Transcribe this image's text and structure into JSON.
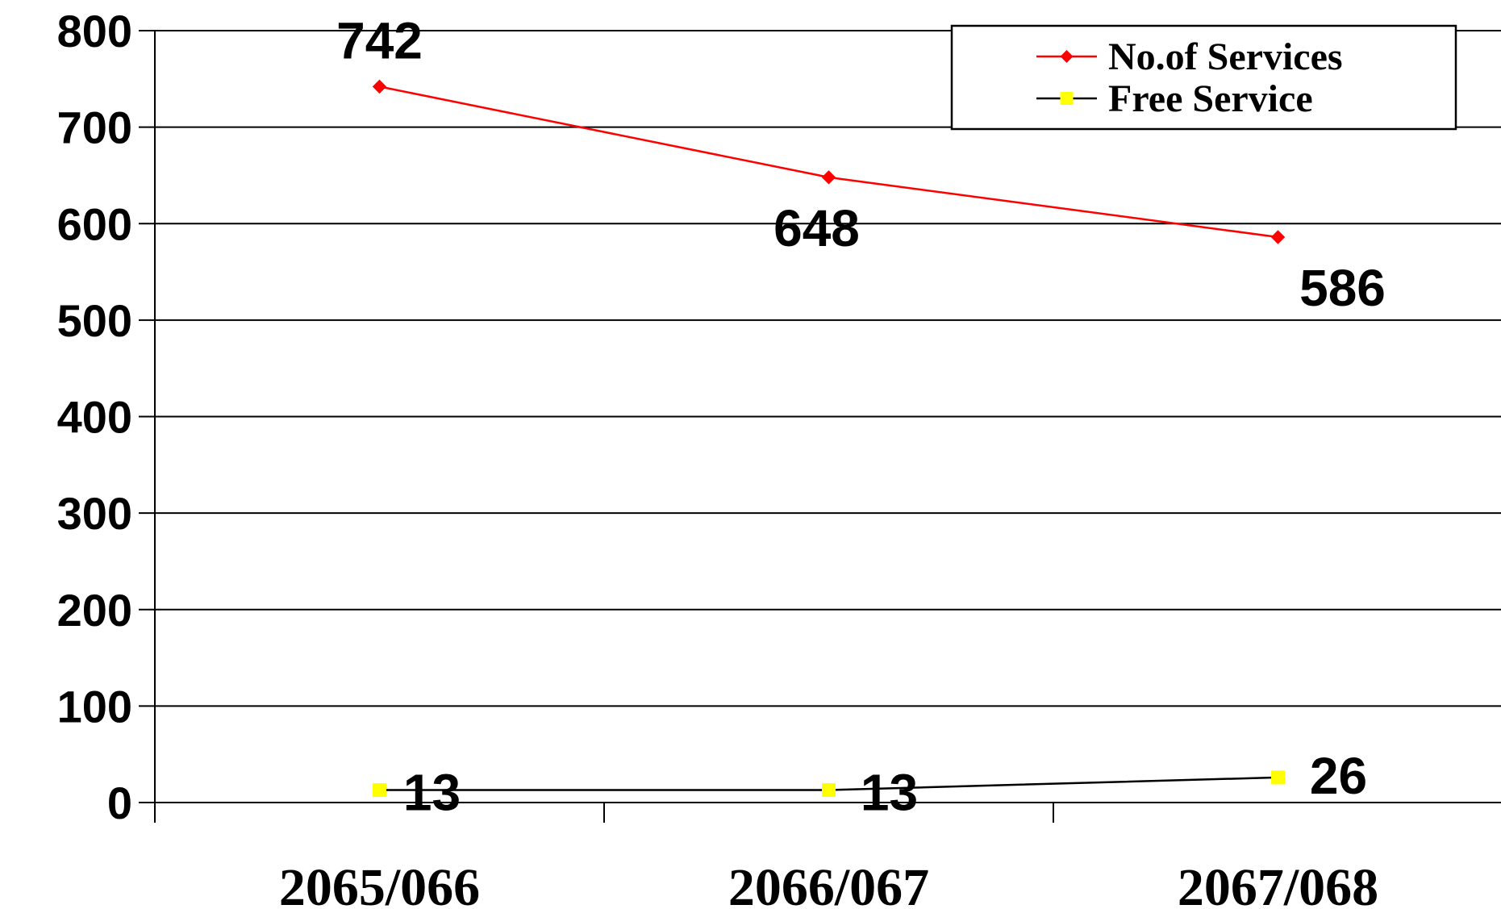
{
  "chart_data": {
    "type": "line",
    "title": "",
    "xlabel": "",
    "ylabel": "",
    "categories": [
      "2065/066",
      "2066/067",
      "2067/068"
    ],
    "ylim": [
      0,
      800
    ],
    "yticks": [
      0,
      100,
      200,
      300,
      400,
      500,
      600,
      700,
      800
    ],
    "grid": true,
    "legend": "top-right",
    "series": [
      {
        "name": "No.of Services",
        "values": [
          742,
          648,
          586
        ],
        "color": "#ff0000",
        "marker": "diamond",
        "marker_color": "#ff0000"
      },
      {
        "name": "Free Service",
        "values": [
          13,
          13,
          26
        ],
        "color": "#000000",
        "marker": "square",
        "marker_color": "#ffff00"
      }
    ]
  }
}
